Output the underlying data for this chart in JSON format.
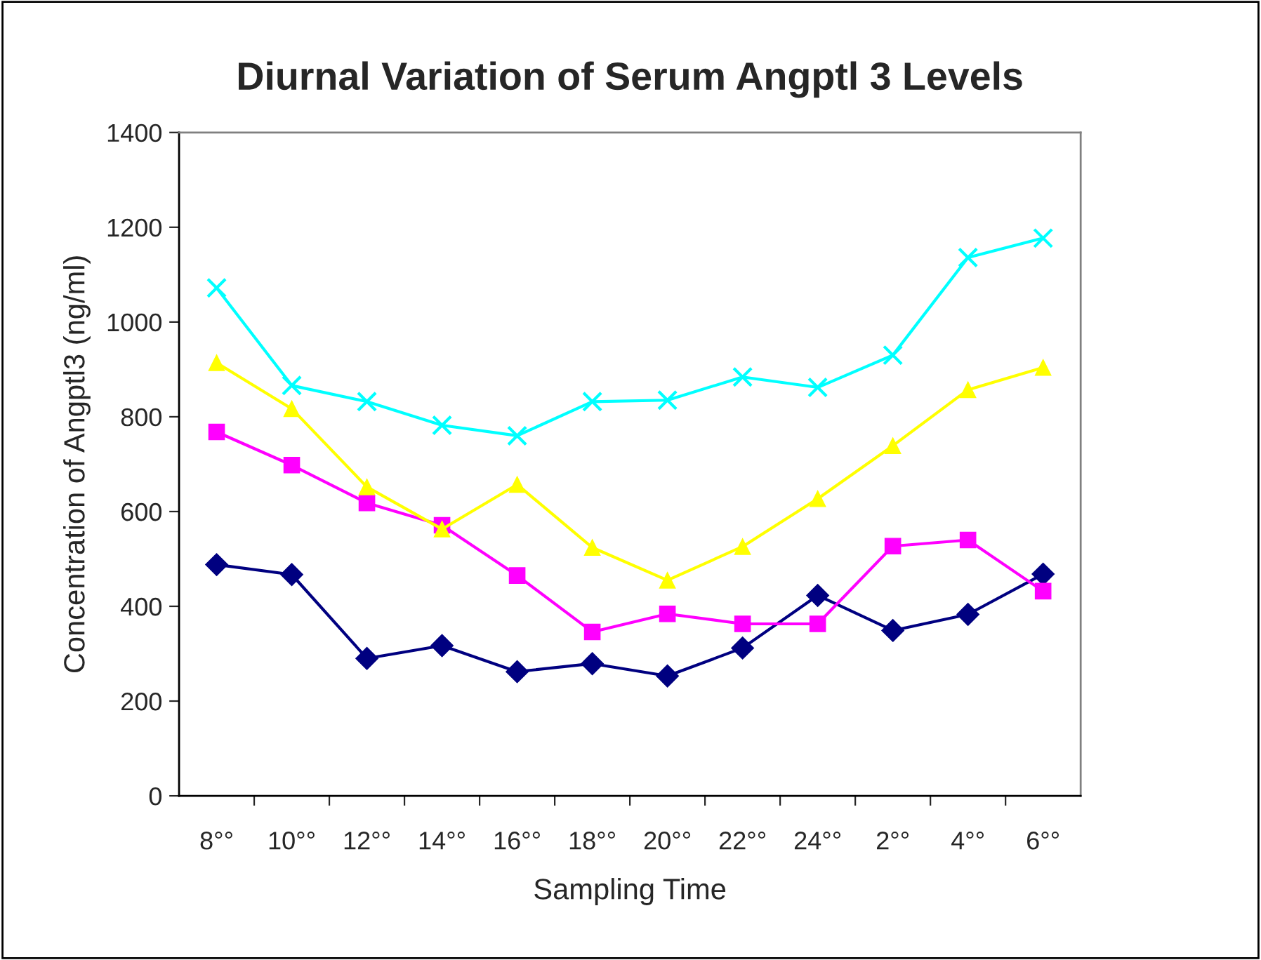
{
  "chart_data": {
    "type": "line",
    "title": "Diurnal Variation of Serum Angptl 3 Levels",
    "xlabel": "Sampling Time",
    "ylabel": "Concentration of Angptl3 (ng/ml)",
    "categories": [
      "8°°",
      "10°°",
      "12°°",
      "14°°",
      "16°°",
      "18°°",
      "20°°",
      "22°°",
      "24°°",
      "2°°",
      "4°°",
      "6°°"
    ],
    "series": [
      {
        "color": "#000080",
        "marker": "diamond",
        "values": [
          488,
          467,
          290,
          317,
          262,
          279,
          253,
          312,
          423,
          349,
          383,
          468
        ]
      },
      {
        "color": "#ff00ff",
        "marker": "square",
        "values": [
          768,
          698,
          618,
          571,
          465,
          346,
          384,
          363,
          363,
          527,
          540,
          432
        ]
      },
      {
        "color": "#ffff00",
        "marker": "triangle",
        "values": [
          914,
          817,
          652,
          563,
          657,
          524,
          455,
          526,
          627,
          739,
          857,
          904
        ]
      },
      {
        "color": "#00ffff",
        "marker": "cross",
        "values": [
          1072,
          866,
          832,
          782,
          760,
          832,
          835,
          884,
          862,
          930,
          1136,
          1177
        ]
      }
    ],
    "ylim": [
      0,
      1400
    ],
    "yticks": [
      0,
      200,
      400,
      600,
      800,
      1000,
      1200,
      1400
    ],
    "grid": false,
    "legend": false
  }
}
